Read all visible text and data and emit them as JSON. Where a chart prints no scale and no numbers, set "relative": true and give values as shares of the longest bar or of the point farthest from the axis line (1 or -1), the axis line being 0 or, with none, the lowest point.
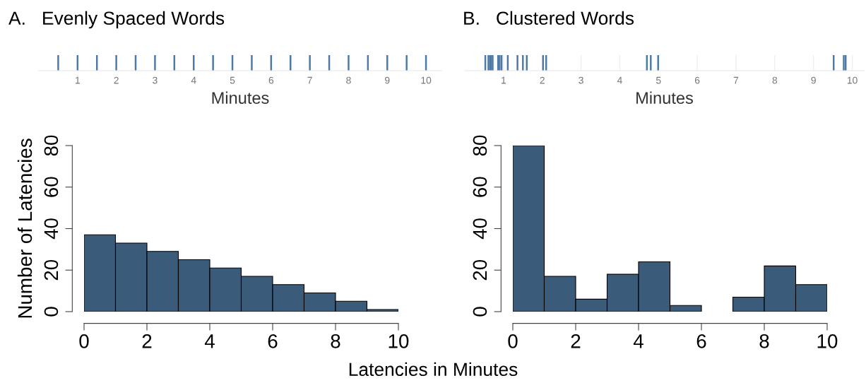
{
  "chart_data": [
    {
      "type": "bar",
      "relative": true,
      "title": "A.   Evenly Spaced Words",
      "xlabel": "Minutes",
      "x": [
        0.5,
        1,
        1.5,
        2,
        2.5,
        3,
        3.5,
        4,
        4.5,
        5,
        5.5,
        6,
        6.5,
        7,
        7.5,
        8,
        8.5,
        9,
        9.5,
        10
      ],
      "values": [
        1,
        1,
        1,
        1,
        1,
        1,
        1,
        1,
        1,
        1,
        1,
        1,
        1,
        1,
        1,
        1,
        1,
        1,
        1,
        1
      ],
      "color": "#4e79a7",
      "xlim": [
        0,
        10.4
      ],
      "xticks": [
        1,
        2,
        3,
        4,
        5,
        6,
        7,
        8,
        9,
        10
      ],
      "tick_labels": "x"
    },
    {
      "type": "bar",
      "relative": true,
      "title": "B.   Clustered Words",
      "xlabel": "Minutes",
      "x": [
        0.53,
        0.61,
        0.65,
        0.68,
        0.72,
        0.86,
        0.9,
        0.95,
        1.11,
        1.36,
        1.5,
        1.6,
        2.02,
        2.1,
        4.7,
        4.8,
        4.99,
        9.52,
        9.78,
        9.83
      ],
      "values": [
        1,
        1,
        1,
        1,
        1,
        1,
        1,
        1,
        1,
        1,
        1,
        1,
        1,
        1,
        1,
        1,
        1,
        1,
        1,
        1
      ],
      "color": "#4e79a7",
      "xlim": [
        0,
        10.3
      ],
      "xticks": [
        1,
        2,
        3,
        4,
        5,
        6,
        7,
        8,
        9,
        10
      ],
      "grid": "x",
      "tick_labels": "x"
    },
    {
      "type": "histogram",
      "ylabel": "Number of Latencies",
      "bins": [
        0,
        1,
        2,
        3,
        4,
        5,
        6,
        7,
        8,
        9,
        10
      ],
      "values": [
        37,
        33,
        29,
        25,
        21,
        17,
        13,
        9,
        5,
        1
      ],
      "color": "#3b5b7a",
      "xlim": [
        0,
        10
      ],
      "xticks": [
        0,
        2,
        4,
        6,
        8,
        10
      ],
      "ylim": [
        0,
        80
      ],
      "yticks": [
        0,
        20,
        40,
        60,
        80
      ],
      "grid": false
    },
    {
      "type": "histogram",
      "bins": [
        0,
        1,
        2,
        3,
        4,
        5,
        6,
        7,
        8,
        9,
        10
      ],
      "values": [
        80,
        17,
        6,
        18,
        24,
        3,
        0,
        7,
        22,
        13
      ],
      "color": "#3b5b7a",
      "xlim": [
        0,
        10
      ],
      "xticks": [
        0,
        2,
        4,
        6,
        8,
        10
      ],
      "ylim": [
        0,
        80
      ],
      "yticks": [
        0,
        20,
        40,
        60,
        80
      ],
      "grid": false,
      "annotations": [
        "Latencies in Minutes"
      ]
    }
  ]
}
